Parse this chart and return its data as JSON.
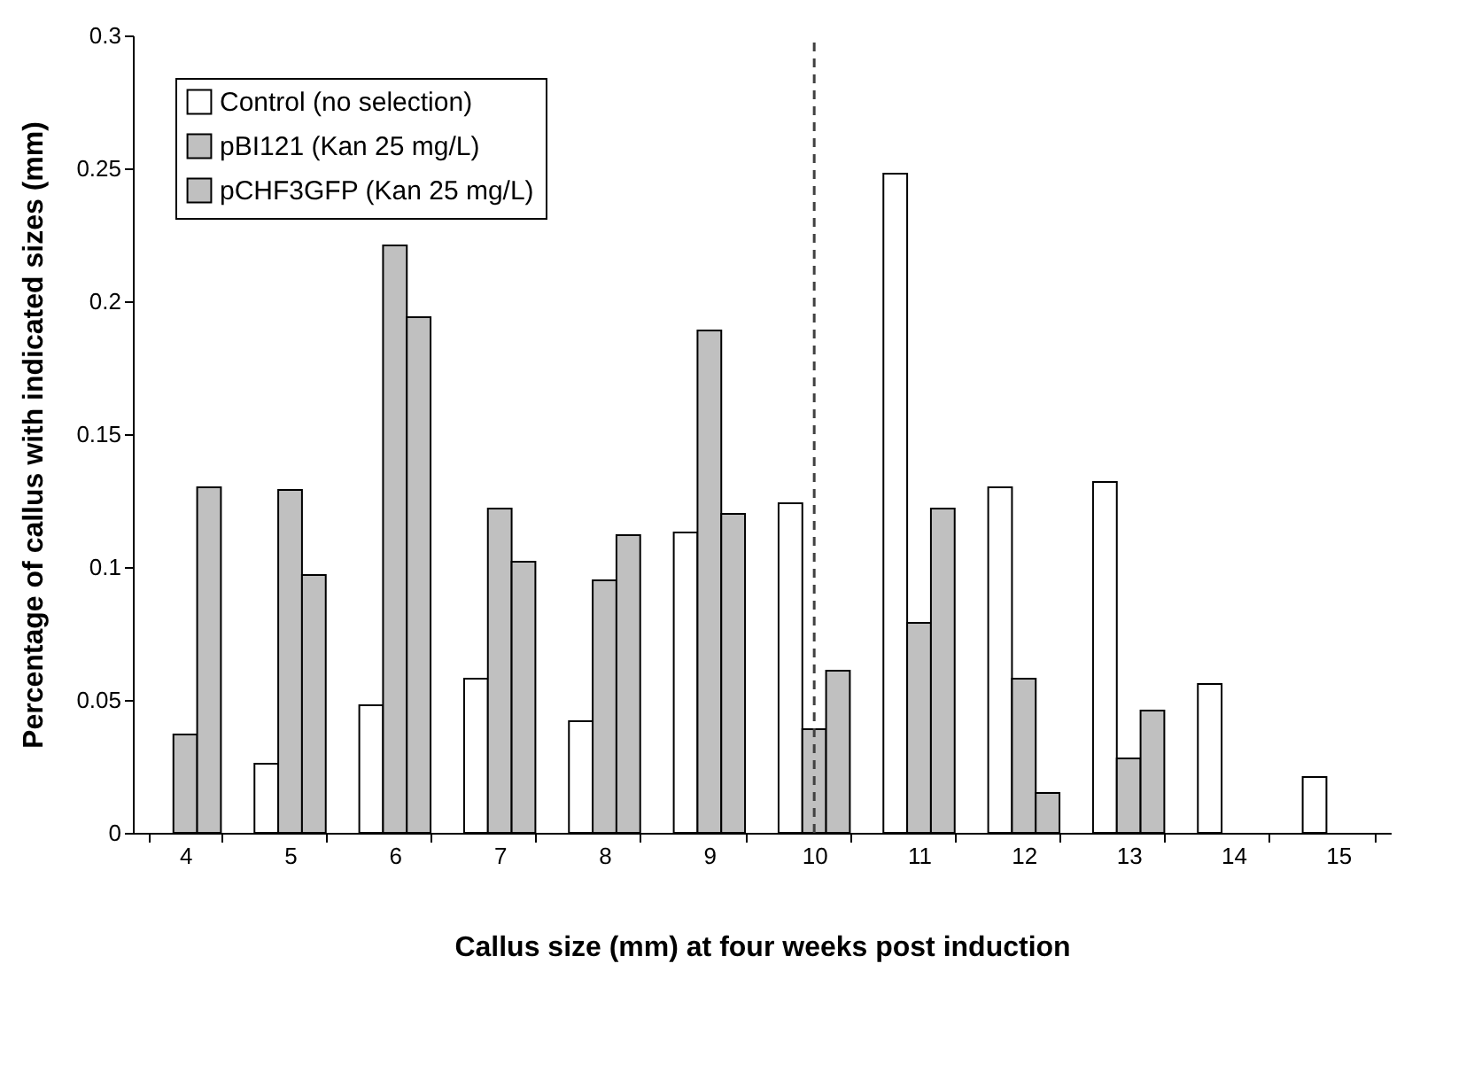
{
  "chart_data": {
    "type": "bar",
    "xlabel": "Callus size (mm) at four weeks post induction",
    "ylabel": "Percentage of callus with indicated sizes (mm)",
    "categories": [
      "4",
      "5",
      "6",
      "7",
      "8",
      "9",
      "10",
      "11",
      "12",
      "13",
      "14",
      "15"
    ],
    "series": [
      {
        "name": "Control (no selection)",
        "color": "#ffffff",
        "values": [
          null,
          0.026,
          0.048,
          0.058,
          0.042,
          0.113,
          0.124,
          0.248,
          0.13,
          0.132,
          0.056,
          0.021
        ]
      },
      {
        "name": "pBI121 (Kan 25 mg/L)",
        "color": "#c0c0c0",
        "values": [
          0.037,
          0.129,
          0.221,
          0.122,
          0.095,
          0.189,
          0.039,
          0.079,
          0.058,
          0.028,
          null,
          null
        ]
      },
      {
        "name": "pCHF3GFP (Kan 25 mg/L)",
        "color": "#c0c0c0",
        "values": [
          0.13,
          0.097,
          0.194,
          0.102,
          0.112,
          0.12,
          0.061,
          0.122,
          0.015,
          0.046,
          null,
          null
        ]
      }
    ],
    "ylim": [
      0,
      0.3
    ],
    "yticks": [
      0,
      0.05,
      0.1,
      0.15,
      0.2,
      0.25,
      0.3
    ],
    "grid": false,
    "legend": "top left",
    "ref_lines": [
      {
        "axis": "x",
        "value": "10",
        "line_style": "dashed",
        "color": "#404040"
      }
    ]
  }
}
